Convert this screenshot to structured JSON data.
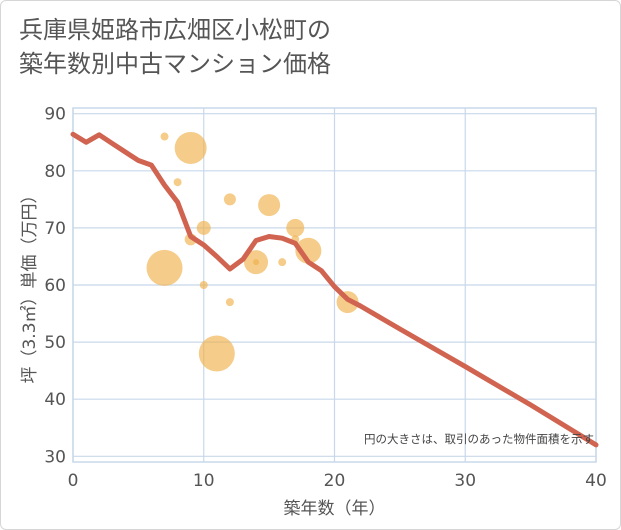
{
  "title_lines": [
    "兵庫県姫路市広畑区小松町の",
    "築年数別中古マンション価格"
  ],
  "chart_data": {
    "type": "scatter",
    "title": "兵庫県姫路市広畑区小松町の築年数別中古マンション価格",
    "xlabel": "築年数（年）",
    "ylabel": "坪（3.3㎡）単価（万円）",
    "xlim": [
      0,
      40
    ],
    "ylim": [
      29,
      91
    ],
    "xticks": [
      0,
      10,
      20,
      30,
      40
    ],
    "yticks": [
      30,
      40,
      50,
      60,
      70,
      80,
      90
    ],
    "grid": true,
    "note": "円の大きさは、取引のあった物件面積を示す",
    "bubbles": [
      {
        "x": 7,
        "y": 86,
        "size": 4
      },
      {
        "x": 9,
        "y": 84,
        "size": 16
      },
      {
        "x": 8,
        "y": 78,
        "size": 4
      },
      {
        "x": 12,
        "y": 75,
        "size": 6
      },
      {
        "x": 15,
        "y": 74,
        "size": 11
      },
      {
        "x": 10,
        "y": 70,
        "size": 7
      },
      {
        "x": 17,
        "y": 70,
        "size": 9
      },
      {
        "x": 9,
        "y": 68,
        "size": 6
      },
      {
        "x": 17,
        "y": 68,
        "size": 4
      },
      {
        "x": 18,
        "y": 66,
        "size": 13
      },
      {
        "x": 14,
        "y": 64,
        "size": 12
      },
      {
        "x": 14,
        "y": 64,
        "size": 3
      },
      {
        "x": 16,
        "y": 64,
        "size": 4
      },
      {
        "x": 7,
        "y": 63,
        "size": 18
      },
      {
        "x": 10,
        "y": 60,
        "size": 4
      },
      {
        "x": 21,
        "y": 57,
        "size": 11
      },
      {
        "x": 12,
        "y": 57,
        "size": 4
      },
      {
        "x": 11,
        "y": 48,
        "size": 18
      }
    ],
    "trend": {
      "x": [
        0,
        1,
        2,
        3,
        4,
        5,
        6,
        7,
        8,
        9,
        10,
        11,
        12,
        13,
        14,
        15,
        16,
        17,
        18,
        19,
        20,
        21,
        22,
        25,
        30,
        35,
        40
      ],
      "y": [
        86.4,
        85,
        86.3,
        84.8,
        83.3,
        81.8,
        81,
        77.5,
        74.5,
        68.5,
        67,
        65,
        62.8,
        64.5,
        67.8,
        68.5,
        68.2,
        67.3,
        64,
        62.5,
        59.7,
        57.5,
        56.3,
        52.3,
        45.7,
        39,
        32
      ]
    },
    "colors": {
      "bubble": "#f0b14a",
      "trend": "#d06450",
      "grid": "#c8d8ea"
    }
  }
}
